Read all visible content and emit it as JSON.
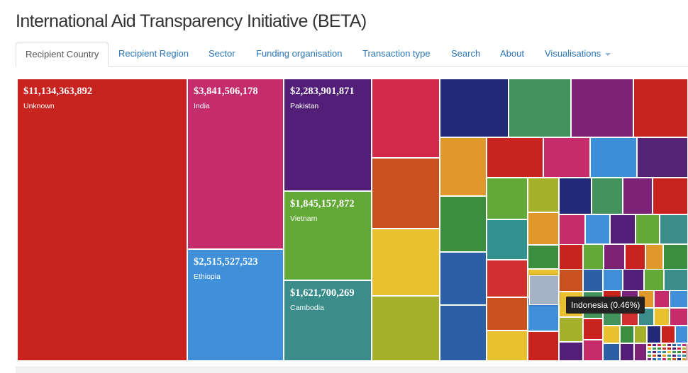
{
  "page": {
    "title": "International Aid Transparency Initiative (BETA)"
  },
  "tabs": [
    {
      "label": "Recipient Country",
      "active": true
    },
    {
      "label": "Recipient Region"
    },
    {
      "label": "Sector"
    },
    {
      "label": "Funding organisation"
    },
    {
      "label": "Transaction type"
    },
    {
      "label": "Search"
    },
    {
      "label": "About"
    },
    {
      "label": "Visualisations",
      "dropdown": true
    }
  ],
  "treemap": {
    "labeled": [
      {
        "amount": "$11,134,363,892",
        "country": "Unknown",
        "color": "#c8231e"
      },
      {
        "amount": "$3,841,506,178",
        "country": "India",
        "color": "#c52c6c"
      },
      {
        "amount": "$2,515,527,523",
        "country": "Ethiopia",
        "color": "#3f8fd9"
      },
      {
        "amount": "$2,283,901,871",
        "country": "Pakistan",
        "color": "#521e78"
      },
      {
        "amount": "$1,845,157,872",
        "country": "Vietnam",
        "color": "#63a937"
      },
      {
        "amount": "$1,621,700,269",
        "country": "Cambodia",
        "color": "#3a8d8b"
      }
    ],
    "highlighted_color": "#a6b2c6"
  },
  "tooltip": {
    "text": "Indonesia (0.46%)"
  }
}
